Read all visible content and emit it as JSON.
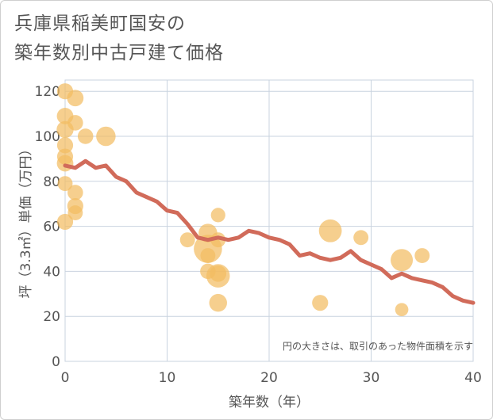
{
  "chart_data": {
    "type": "scatter",
    "title_lines": [
      "兵庫県稲美町国安の",
      "築年数別中古戸建て価格"
    ],
    "xlabel": "築年数（年）",
    "ylabel": "坪（3.3㎡）単価（万円）",
    "xlim": [
      0,
      40
    ],
    "ylim": [
      0,
      125
    ],
    "xticks": [
      0,
      10,
      20,
      30,
      40
    ],
    "yticks": [
      0,
      20,
      40,
      60,
      80,
      100,
      120
    ],
    "grid": true,
    "note": "円の大きさは、取引のあった物件面積を示す",
    "colors": {
      "bubble": "#f3bc63",
      "line": "#d16b5a",
      "grid": "#c9d3df",
      "text": "#555555"
    },
    "scatter_points": [
      {
        "x": 0,
        "y": 120,
        "size": 1.2
      },
      {
        "x": 1,
        "y": 117,
        "size": 1.3
      },
      {
        "x": 0,
        "y": 109,
        "size": 1.3
      },
      {
        "x": 1,
        "y": 106,
        "size": 1.1
      },
      {
        "x": 0,
        "y": 103,
        "size": 1.4
      },
      {
        "x": 2,
        "y": 100,
        "size": 1.1
      },
      {
        "x": 4,
        "y": 100,
        "size": 2.0
      },
      {
        "x": 0,
        "y": 96,
        "size": 1.2
      },
      {
        "x": 0,
        "y": 91,
        "size": 1.2
      },
      {
        "x": 0,
        "y": 88,
        "size": 1.3
      },
      {
        "x": 0,
        "y": 79,
        "size": 1.0
      },
      {
        "x": 1,
        "y": 75,
        "size": 1.1
      },
      {
        "x": 1,
        "y": 69,
        "size": 1.2
      },
      {
        "x": 1,
        "y": 66,
        "size": 1.0
      },
      {
        "x": 0,
        "y": 62,
        "size": 1.2
      },
      {
        "x": 12,
        "y": 54,
        "size": 1.0
      },
      {
        "x": 14,
        "y": 57,
        "size": 1.8
      },
      {
        "x": 15,
        "y": 65,
        "size": 0.9
      },
      {
        "x": 15,
        "y": 54,
        "size": 1.0
      },
      {
        "x": 14,
        "y": 50,
        "size": 5.0
      },
      {
        "x": 14,
        "y": 47,
        "size": 1.0
      },
      {
        "x": 14,
        "y": 40,
        "size": 1.1
      },
      {
        "x": 15,
        "y": 38,
        "size": 3.2
      },
      {
        "x": 15,
        "y": 39,
        "size": 1.3
      },
      {
        "x": 15,
        "y": 26,
        "size": 1.6
      },
      {
        "x": 25,
        "y": 26,
        "size": 1.2
      },
      {
        "x": 26,
        "y": 58,
        "size": 3.0
      },
      {
        "x": 29,
        "y": 55,
        "size": 1.0
      },
      {
        "x": 33,
        "y": 45,
        "size": 2.8
      },
      {
        "x": 35,
        "y": 47,
        "size": 1.0
      },
      {
        "x": 33,
        "y": 23,
        "size": 0.7
      }
    ],
    "trend_line": {
      "x": [
        0,
        1,
        2,
        3,
        4,
        5,
        6,
        7,
        8,
        9,
        10,
        11,
        12,
        13,
        14,
        15,
        16,
        17,
        18,
        19,
        20,
        21,
        22,
        23,
        24,
        25,
        26,
        27,
        28,
        29,
        30,
        31,
        32,
        33,
        34,
        35,
        36,
        37,
        38,
        39,
        40
      ],
      "y": [
        87,
        86,
        89,
        86,
        87,
        82,
        80,
        75,
        73,
        71,
        67,
        66,
        61,
        55,
        54,
        55,
        54,
        55,
        58,
        57,
        55,
        54,
        52,
        47,
        48,
        46,
        45,
        46,
        49,
        45,
        43,
        41,
        37,
        39,
        37,
        36,
        35,
        33,
        29,
        27,
        26
      ]
    }
  }
}
